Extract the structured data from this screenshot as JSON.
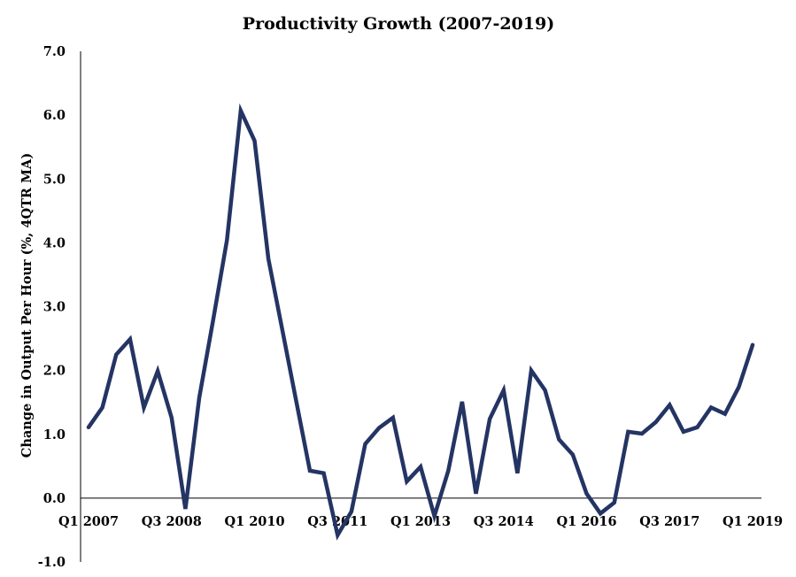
{
  "chart_data": {
    "type": "line",
    "title": "Productivity Growth (2007-2019)",
    "xlabel": "",
    "ylabel": "Change in Output Per Hour (%, 4QTR MA)",
    "ylim": [
      -1.0,
      7.0
    ],
    "yticks": [
      "-1.0",
      "0.0",
      "1.0",
      "2.0",
      "3.0",
      "4.0",
      "5.0",
      "6.0",
      "7.0"
    ],
    "grid": false,
    "legend": "none",
    "line_color": "#243463",
    "x": [
      "Q1 2007",
      "Q2 2007",
      "Q3 2007",
      "Q4 2007",
      "Q1 2008",
      "Q2 2008",
      "Q3 2008",
      "Q4 2008",
      "Q1 2009",
      "Q2 2009",
      "Q3 2009",
      "Q4 2009",
      "Q1 2010",
      "Q2 2010",
      "Q3 2010",
      "Q4 2010",
      "Q1 2011",
      "Q2 2011",
      "Q3 2011",
      "Q4 2011",
      "Q1 2012",
      "Q2 2012",
      "Q3 2012",
      "Q4 2012",
      "Q1 2013",
      "Q2 2013",
      "Q3 2013",
      "Q4 2013",
      "Q1 2014",
      "Q2 2014",
      "Q3 2014",
      "Q4 2014",
      "Q1 2015",
      "Q2 2015",
      "Q3 2015",
      "Q4 2015",
      "Q1 2016",
      "Q2 2016",
      "Q3 2016",
      "Q4 2016",
      "Q1 2017",
      "Q2 2017",
      "Q3 2017",
      "Q4 2017",
      "Q1 2018",
      "Q2 2018",
      "Q3 2018",
      "Q4 2018",
      "Q1 2019"
    ],
    "xtick_labels": [
      "Q1 2007",
      "Q3 2008",
      "Q1 2010",
      "Q3 2011",
      "Q1 2013",
      "Q3 2014",
      "Q1 2016",
      "Q3 2017",
      "Q1 2019"
    ],
    "values": [
      1.11,
      1.42,
      2.25,
      2.49,
      1.42,
      1.99,
      1.26,
      -0.17,
      1.57,
      2.78,
      4.04,
      6.07,
      5.6,
      3.75,
      2.64,
      1.53,
      0.43,
      0.39,
      -0.58,
      -0.21,
      0.85,
      1.1,
      1.26,
      0.26,
      0.49,
      -0.28,
      0.43,
      1.51,
      0.07,
      1.24,
      1.69,
      0.39,
      2.0,
      1.69,
      0.92,
      0.68,
      0.07,
      -0.24,
      -0.07,
      1.04,
      1.01,
      1.19,
      1.46,
      1.04,
      1.11,
      1.42,
      1.32,
      1.74,
      2.4
    ]
  }
}
